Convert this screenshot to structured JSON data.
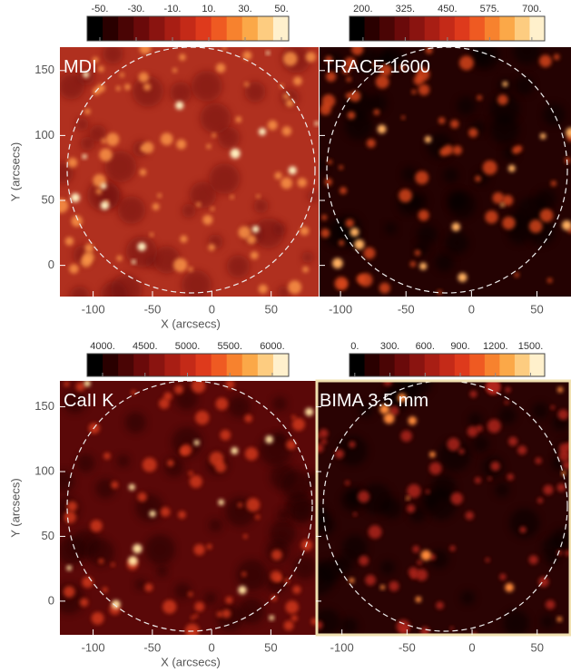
{
  "chart_data": [
    {
      "type": "heatmap",
      "title": "MDI",
      "xlabel": "X (arcsecs)",
      "ylabel": "Y (arcsecs)",
      "xlim": [
        -128,
        90
      ],
      "xticks": [
        -100,
        -50,
        0,
        50
      ],
      "ylim": [
        -24,
        168
      ],
      "yticks": [
        0,
        50,
        100,
        150
      ],
      "colorbar": {
        "lim": [
          -57,
          54
        ],
        "ticks": [
          {
            "value": -50,
            "label": "-50."
          },
          {
            "value": -30,
            "label": "-30."
          },
          {
            "value": -10,
            "label": "-10."
          },
          {
            "value": 10,
            "label": "10."
          },
          {
            "value": 30,
            "label": "30."
          },
          {
            "value": 50,
            "label": "50."
          }
        ]
      }
    },
    {
      "type": "heatmap",
      "title": "TRACE 1600",
      "xlim": [
        -116,
        76
      ],
      "xticks": [
        -100,
        -50,
        0,
        50
      ],
      "ylim": [
        -24,
        168
      ],
      "yticks": [
        0,
        50,
        100,
        150
      ],
      "colorbar": {
        "lim": [
          160,
          738
        ],
        "ticks": [
          {
            "value": 200,
            "label": "200."
          },
          {
            "value": 325,
            "label": "325."
          },
          {
            "value": 450,
            "label": "450."
          },
          {
            "value": 575,
            "label": "575."
          },
          {
            "value": 700,
            "label": "700."
          }
        ]
      }
    },
    {
      "type": "heatmap",
      "title": "CaII K",
      "xlabel": "X (arcsecs)",
      "ylabel": "Y (arcsecs)",
      "xlim": [
        -128,
        88
      ],
      "xticks": [
        -100,
        -50,
        0,
        50
      ],
      "ylim": [
        -26,
        170
      ],
      "yticks": [
        0,
        50,
        100,
        150
      ],
      "colorbar": {
        "lim": [
          3818,
          6193
        ],
        "ticks": [
          {
            "value": 4000,
            "label": "4000."
          },
          {
            "value": 4500,
            "label": "4500."
          },
          {
            "value": 5000,
            "label": "5000."
          },
          {
            "value": 5500,
            "label": "5500."
          },
          {
            "value": 6000,
            "label": "6000."
          }
        ]
      }
    },
    {
      "type": "heatmap",
      "title": "BIMA 3.5 mm",
      "xlim": [
        -120,
        76
      ],
      "xticks": [
        -100,
        -50,
        0,
        50
      ],
      "ylim": [
        -26,
        170
      ],
      "yticks": [
        0,
        50,
        100,
        150
      ],
      "colorbar": {
        "lim": [
          -45,
          1620
        ],
        "ticks": [
          {
            "value": 0,
            "label": "0."
          },
          {
            "value": 300,
            "label": "300."
          },
          {
            "value": 600,
            "label": "600."
          },
          {
            "value": 900,
            "label": "900."
          },
          {
            "value": 1200,
            "label": "1200."
          },
          {
            "value": 1500,
            "label": "1500."
          }
        ]
      }
    }
  ]
}
